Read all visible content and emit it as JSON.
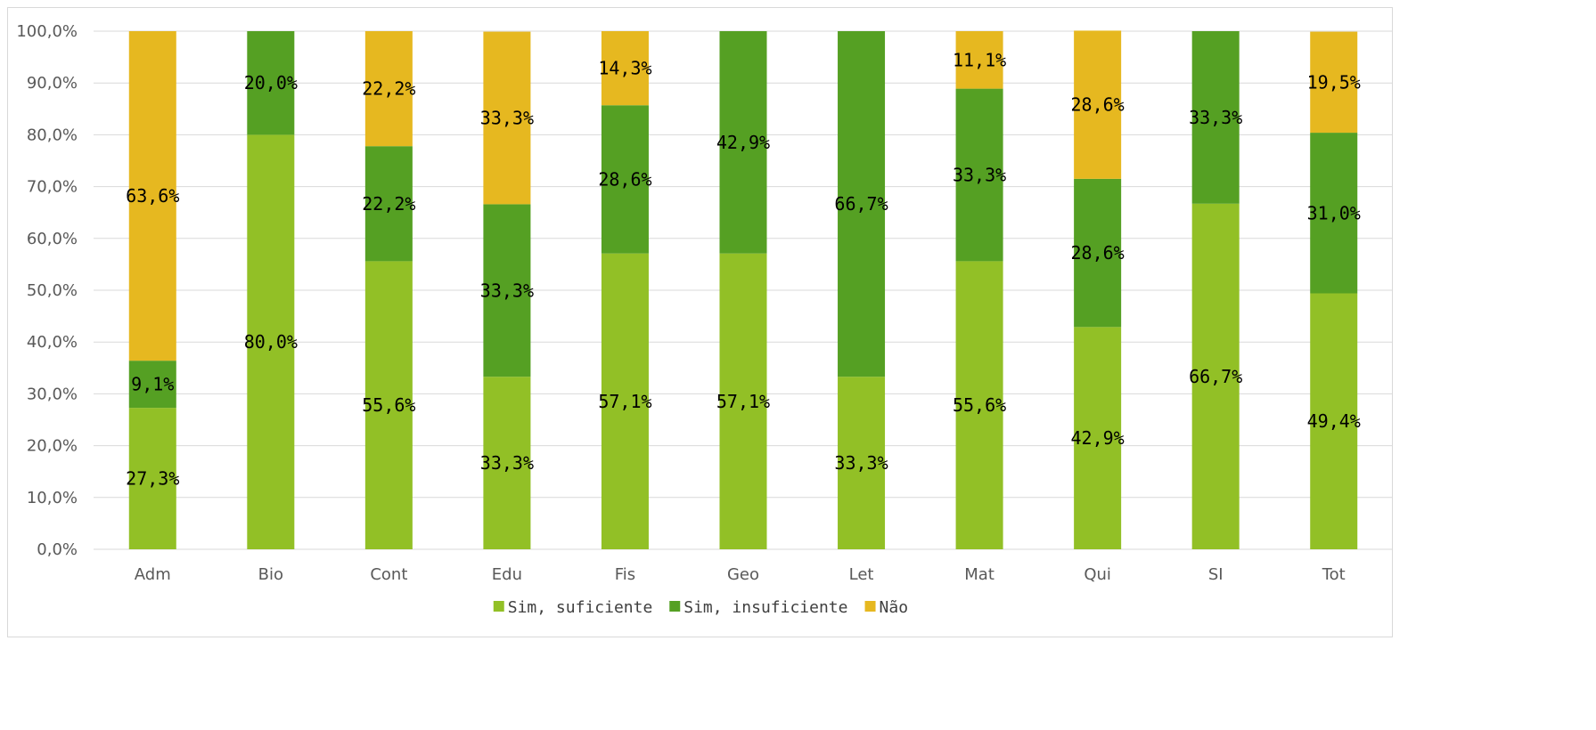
{
  "chart_data": {
    "type": "bar",
    "stacked": true,
    "categories": [
      "Adm",
      "Bio",
      "Cont",
      "Edu",
      "Fis",
      "Geo",
      "Let",
      "Mat",
      "Qui",
      "SI",
      "Tot"
    ],
    "series": [
      {
        "name": "Sim, suficiente",
        "color": "#92c026",
        "values": [
          27.3,
          80.0,
          55.6,
          33.3,
          57.1,
          57.1,
          33.3,
          55.6,
          42.9,
          66.7,
          49.4
        ],
        "labels": [
          "27,3%",
          "80,0%",
          "55,6%",
          "33,3%",
          "57,1%",
          "57,1%",
          "33,3%",
          "55,6%",
          "42,9%",
          "66,7%",
          "49,4%"
        ]
      },
      {
        "name": "Sim, insuficiente",
        "color": "#55a023",
        "values": [
          9.1,
          20.0,
          22.2,
          33.3,
          28.6,
          42.9,
          66.7,
          33.3,
          28.6,
          33.3,
          31.0
        ],
        "labels": [
          "9,1%",
          "20,0%",
          "22,2%",
          "33,3%",
          "28,6%",
          "42,9%",
          "66,7%",
          "33,3%",
          "28,6%",
          "33,3%",
          "31,0%"
        ]
      },
      {
        "name": "Não",
        "color": "#e6b820",
        "values": [
          63.6,
          0,
          22.2,
          33.3,
          14.3,
          0,
          0,
          11.1,
          28.6,
          0,
          19.5
        ],
        "labels": [
          "63,6%",
          "",
          "22,2%",
          "33,3%",
          "14,3%",
          "",
          "",
          "11,1%",
          "28,6%",
          "",
          "19,5%"
        ]
      }
    ],
    "ylim": [
      0,
      100
    ],
    "yticks": [
      "0,0%",
      "10,0%",
      "20,0%",
      "30,0%",
      "40,0%",
      "50,0%",
      "60,0%",
      "70,0%",
      "80,0%",
      "90,0%",
      "100,0%"
    ],
    "grid": true,
    "legend_position": "bottom",
    "title": "",
    "xlabel": "",
    "ylabel": ""
  }
}
